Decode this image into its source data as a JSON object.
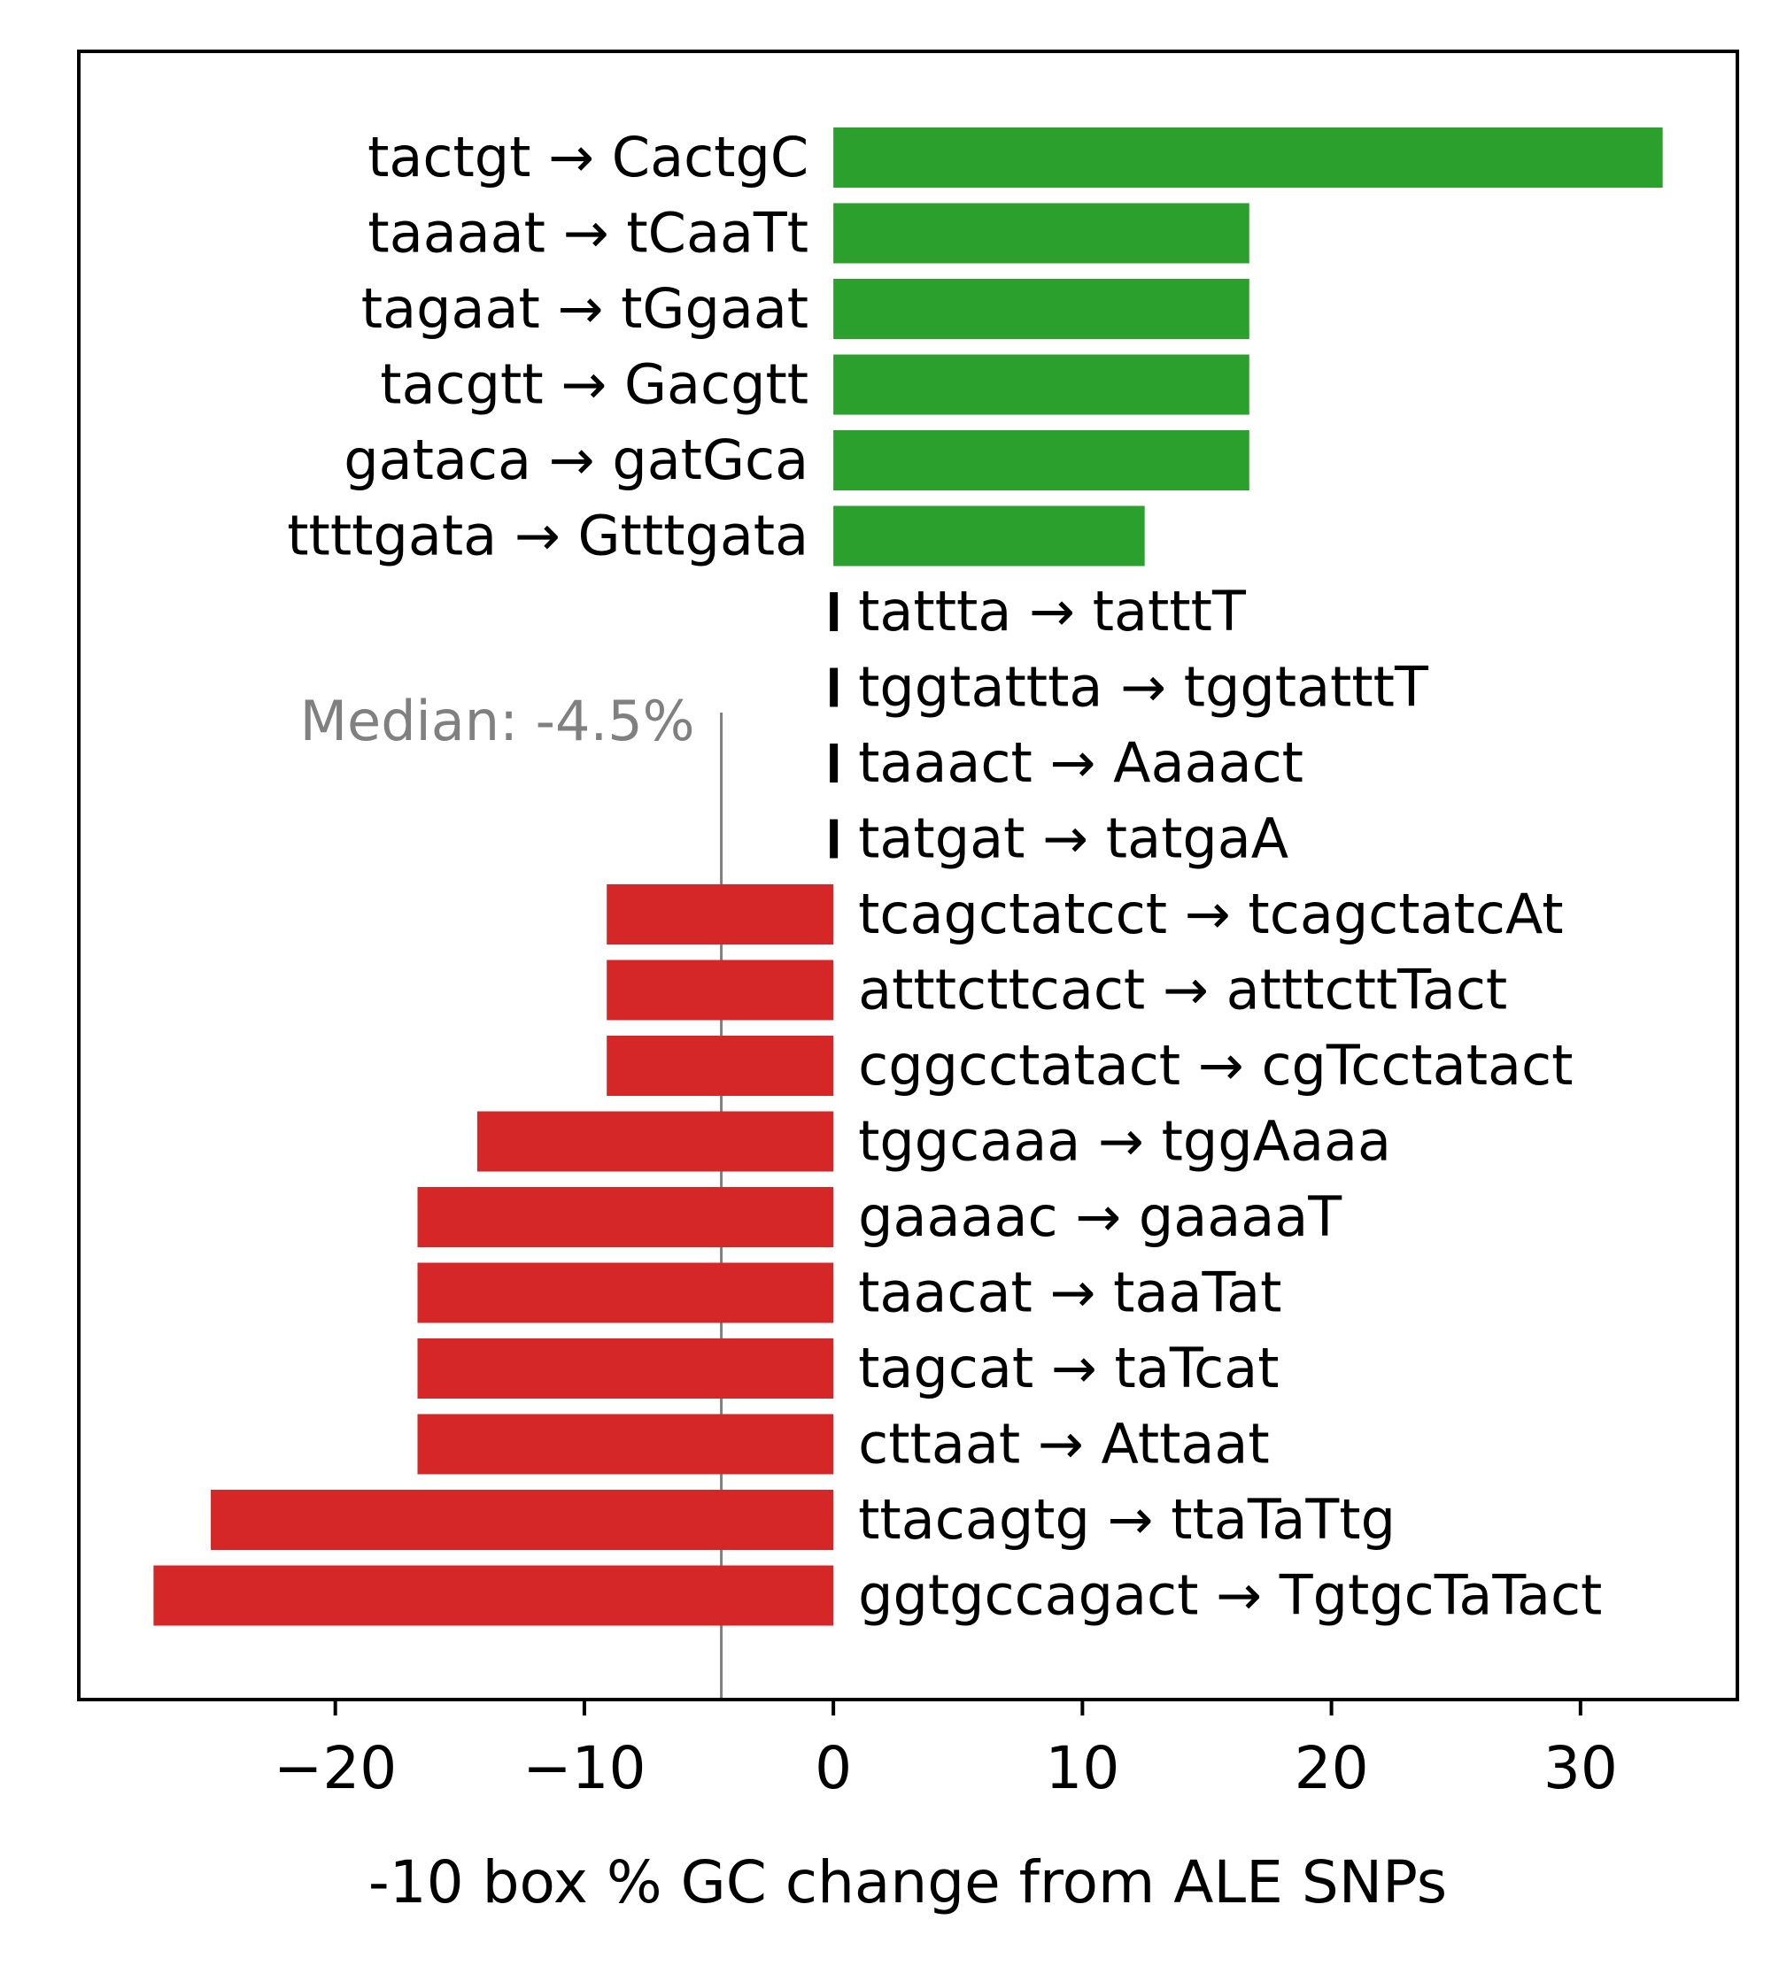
{
  "chart_data": {
    "type": "bar",
    "orientation": "horizontal",
    "title": "",
    "xlabel": "-10 box % GC change from ALE SNPs",
    "ylabel": "",
    "xlim": [
      -30.3,
      36.3
    ],
    "xticks": [
      -20,
      -10,
      0,
      10,
      20,
      30
    ],
    "xtick_labels": [
      "−20",
      "−10",
      "0",
      "10",
      "20",
      "30"
    ],
    "grid": false,
    "legend": "none",
    "categories": [
      "tactgt → CactgC",
      "taaaat → tCaaTt",
      "tagaat → tGgaat",
      "tacgtt → Gacgtt",
      "gataca → gatGca",
      "ttttgata → Gtttgata",
      "tattta → tatttT",
      "tggtattta → tggtatttT",
      "taaact → Aaaact",
      "tatgat → tatgaA",
      "tcagctatcct → tcagctatcAt",
      "atttcttcact → atttcttTact",
      "cggcctatact → cgTcctatact",
      "tggcaaa → tggAaaa",
      "gaaaac → gaaaaT",
      "taacat → taaTat",
      "tagcat → taTcat",
      "cttaat → Attaat",
      "ttacagtg → ttaTaTtg",
      "ggtgccagact → TgtgcTaTact"
    ],
    "values": [
      33.3,
      16.7,
      16.7,
      16.7,
      16.7,
      12.5,
      0,
      0,
      0,
      0,
      -9.1,
      -9.1,
      -9.1,
      -14.3,
      -16.7,
      -16.7,
      -16.7,
      -16.7,
      -25.0,
      -27.3
    ],
    "median": -4.5,
    "median_label": "Median: -4.5%",
    "colors": {
      "positive": "#2ca02c",
      "negative": "#d62728",
      "zero_marker": "#000000",
      "median_line": "#808080",
      "axis": "#000000"
    }
  }
}
